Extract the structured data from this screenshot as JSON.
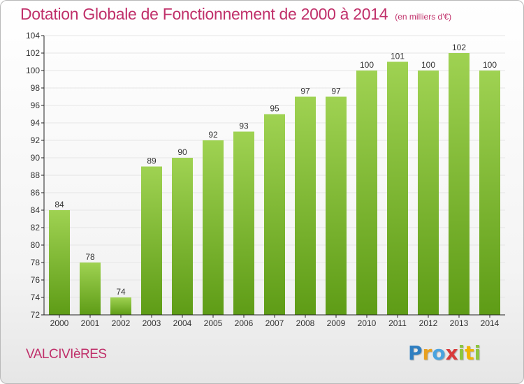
{
  "header": {
    "title": "Dotation Globale de Fonctionnement de 2000 à 2014",
    "unit": "(en milliers d'€)"
  },
  "footer": {
    "commune": "VALCIVIèRES",
    "logo": [
      "P",
      "r",
      "o",
      "x",
      "i",
      "t",
      "i"
    ]
  },
  "colors": {
    "title": "#c0306a",
    "bar_top": "#9fd252",
    "bar_bottom": "#5e9c16",
    "grid": "#e5e5e5",
    "axis": "#222222"
  },
  "chart_data": {
    "type": "bar",
    "title": "Dotation Globale de Fonctionnement de 2000 à 2014",
    "xlabel": "",
    "ylabel": "",
    "categories": [
      "2000",
      "2001",
      "2002",
      "2003",
      "2004",
      "2005",
      "2006",
      "2007",
      "2008",
      "2009",
      "2010",
      "2011",
      "2012",
      "2013",
      "2014"
    ],
    "values": [
      84,
      78,
      74,
      89,
      90,
      92,
      93,
      95,
      97,
      97,
      100,
      101,
      100,
      102,
      100
    ],
    "ylim": [
      72,
      104
    ],
    "yticks": [
      72,
      74,
      76,
      78,
      80,
      82,
      84,
      86,
      88,
      90,
      92,
      94,
      96,
      98,
      100,
      102,
      104
    ],
    "grid": true,
    "legend": "none"
  }
}
